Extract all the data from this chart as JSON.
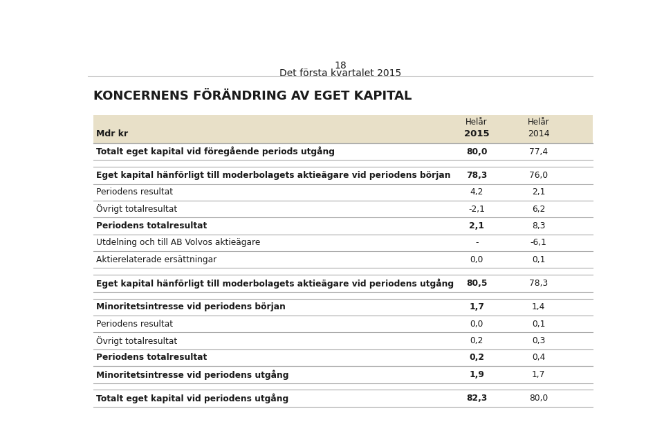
{
  "page_number": "18",
  "page_subtitle": "Det första kvartalet 2015",
  "main_title": "KONCERNENS FÖRÄNDRING AV EGET KAPITAL",
  "col_header_label": "Mdr kr",
  "col1_header_top": "Helår",
  "col2_header_top": "Helår",
  "col1_header": "2015",
  "col2_header": "2014",
  "rows": [
    {
      "label": "Totalt eget kapital vid föregående periods utgång",
      "v1": "80,0",
      "v2": "77,4",
      "bold": true,
      "top_border": true,
      "bottom_border": true,
      "indent": 0
    },
    {
      "label": "",
      "v1": "",
      "v2": "",
      "bold": false,
      "top_border": false,
      "bottom_border": false,
      "indent": 0
    },
    {
      "label": "Eget kapital hänförligt till moderbolagets aktieägare vid periodens början",
      "v1": "78,3",
      "v2": "76,0",
      "bold": true,
      "top_border": true,
      "bottom_border": true,
      "indent": 0
    },
    {
      "label": "Periodens resultat",
      "v1": "4,2",
      "v2": "2,1",
      "bold": false,
      "top_border": false,
      "bottom_border": true,
      "indent": 0
    },
    {
      "label": "Övrigt totalresultat",
      "v1": "-2,1",
      "v2": "6,2",
      "bold": false,
      "top_border": false,
      "bottom_border": true,
      "indent": 0
    },
    {
      "label": "Periodens totalresultat",
      "v1": "2,1",
      "v2": "8,3",
      "bold": true,
      "top_border": false,
      "bottom_border": true,
      "indent": 0
    },
    {
      "label": "Utdelning och till AB Volvos aktieägare",
      "v1": "-",
      "v2": "-6,1",
      "bold": false,
      "top_border": false,
      "bottom_border": true,
      "indent": 0
    },
    {
      "label": "Aktierelaterade ersättningar",
      "v1": "0,0",
      "v2": "0,1",
      "bold": false,
      "top_border": false,
      "bottom_border": true,
      "indent": 0
    },
    {
      "label": "",
      "v1": "",
      "v2": "",
      "bold": false,
      "top_border": false,
      "bottom_border": false,
      "indent": 0
    },
    {
      "label": "Eget kapital hänförligt till moderbolagets aktieägare vid periodens utgång",
      "v1": "80,5",
      "v2": "78,3",
      "bold": true,
      "top_border": true,
      "bottom_border": true,
      "indent": 0
    },
    {
      "label": "",
      "v1": "",
      "v2": "",
      "bold": false,
      "top_border": false,
      "bottom_border": false,
      "indent": 0
    },
    {
      "label": "Minoritetsintresse vid periodens början",
      "v1": "1,7",
      "v2": "1,4",
      "bold": true,
      "top_border": true,
      "bottom_border": true,
      "indent": 0
    },
    {
      "label": "Periodens resultat",
      "v1": "0,0",
      "v2": "0,1",
      "bold": false,
      "top_border": false,
      "bottom_border": true,
      "indent": 0
    },
    {
      "label": "Övrigt totalresultat",
      "v1": "0,2",
      "v2": "0,3",
      "bold": false,
      "top_border": false,
      "bottom_border": true,
      "indent": 0
    },
    {
      "label": "Periodens totalresultat",
      "v1": "0,2",
      "v2": "0,4",
      "bold": true,
      "top_border": false,
      "bottom_border": true,
      "indent": 0
    },
    {
      "label": "Minoritetsintresse vid periodens utgång",
      "v1": "1,9",
      "v2": "1,7",
      "bold": true,
      "top_border": true,
      "bottom_border": true,
      "indent": 0
    },
    {
      "label": "",
      "v1": "",
      "v2": "",
      "bold": false,
      "top_border": false,
      "bottom_border": false,
      "indent": 0
    },
    {
      "label": "Totalt eget kapital vid periodens utgång",
      "v1": "82,3",
      "v2": "80,0",
      "bold": true,
      "top_border": true,
      "bottom_border": true,
      "indent": 0
    }
  ],
  "header_bg": "#e8e0c8",
  "white_bg": "#ffffff",
  "text_color": "#1a1a1a",
  "border_color": "#aaaaaa",
  "top_line_color": "#cccccc"
}
